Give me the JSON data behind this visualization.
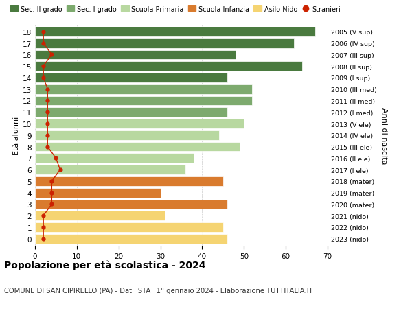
{
  "ages": [
    18,
    17,
    16,
    15,
    14,
    13,
    12,
    11,
    10,
    9,
    8,
    7,
    6,
    5,
    4,
    3,
    2,
    1,
    0
  ],
  "values": [
    67,
    62,
    48,
    64,
    46,
    52,
    52,
    46,
    50,
    44,
    49,
    38,
    36,
    45,
    30,
    46,
    31,
    45,
    46
  ],
  "stranieri": [
    2,
    2,
    4,
    2,
    2,
    3,
    3,
    3,
    3,
    3,
    3,
    5,
    6,
    4,
    4,
    4,
    2,
    2,
    2
  ],
  "right_labels": [
    "2005 (V sup)",
    "2006 (IV sup)",
    "2007 (III sup)",
    "2008 (II sup)",
    "2009 (I sup)",
    "2010 (III med)",
    "2011 (II med)",
    "2012 (I med)",
    "2013 (V ele)",
    "2014 (IV ele)",
    "2015 (III ele)",
    "2016 (II ele)",
    "2017 (I ele)",
    "2018 (mater)",
    "2019 (mater)",
    "2020 (mater)",
    "2021 (nido)",
    "2022 (nido)",
    "2023 (nido)"
  ],
  "bar_colors": [
    "#4a7a3f",
    "#4a7a3f",
    "#4a7a3f",
    "#4a7a3f",
    "#4a7a3f",
    "#7daa6e",
    "#7daa6e",
    "#7daa6e",
    "#b8d8a0",
    "#b8d8a0",
    "#b8d8a0",
    "#b8d8a0",
    "#b8d8a0",
    "#d97b2e",
    "#d97b2e",
    "#d97b2e",
    "#f5d472",
    "#f5d472",
    "#f5d472"
  ],
  "legend_labels": [
    "Sec. II grado",
    "Sec. I grado",
    "Scuola Primaria",
    "Scuola Infanzia",
    "Asilo Nido",
    "Stranieri"
  ],
  "legend_colors": [
    "#4a7a3f",
    "#7daa6e",
    "#b8d8a0",
    "#d97b2e",
    "#f5d472",
    "#cc2200"
  ],
  "stranieri_color": "#cc2200",
  "ylabel_left": "Età alunni",
  "ylabel_right": "Anni di nascita",
  "title": "Popolazione per età scolastica - 2024",
  "subtitle": "COMUNE DI SAN CIPIRELLO (PA) - Dati ISTAT 1° gennaio 2024 - Elaborazione TUTTITALIA.IT",
  "xlim": [
    0,
    70
  ],
  "xticks": [
    0,
    10,
    20,
    30,
    40,
    50,
    60,
    70
  ],
  "bg_color": "#ffffff",
  "bar_height": 0.82,
  "grid_color": "#cccccc"
}
